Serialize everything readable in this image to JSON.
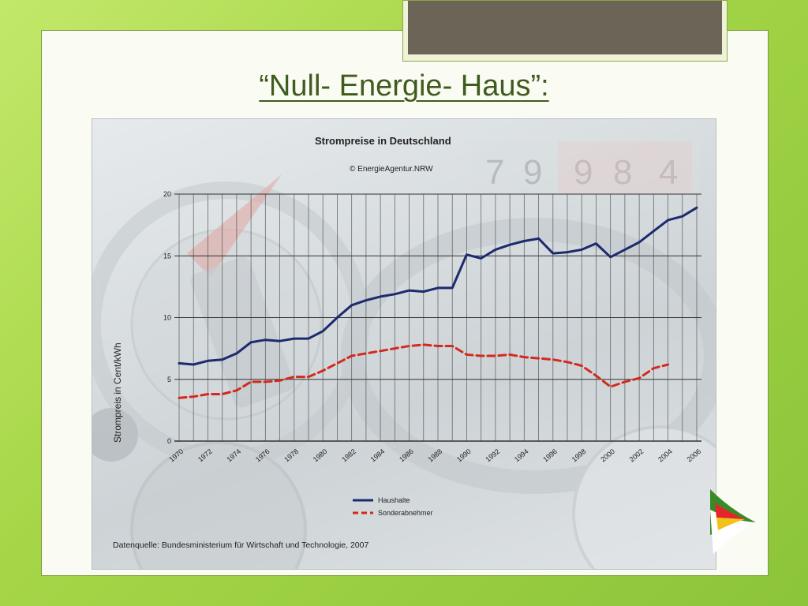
{
  "slide": {
    "title": "“Null- Energie- Haus”:"
  },
  "chart_data": {
    "type": "line",
    "title": "Strompreise in Deutschland",
    "copyright": "© EnergieAgentur.NRW",
    "ylabel": "Strompreis in Cent/kWh",
    "xlabel": "",
    "ylim": [
      0,
      20
    ],
    "xlim": [
      1970,
      2006
    ],
    "yticks": [
      0,
      5,
      10,
      15,
      20
    ],
    "xticks": [
      "1970",
      "1972",
      "1974",
      "1976",
      "1978",
      "1980",
      "1982",
      "1984",
      "1986",
      "1988",
      "1990",
      "1992",
      "1994",
      "1996",
      "1998",
      "2000",
      "2002",
      "2004",
      "2006"
    ],
    "grid": true,
    "legend_position": "bottom-right",
    "source": "Datenquelle: Bundesministerium für Wirtschaft und Technologie, 2007",
    "background_digits": [
      "7",
      "9",
      "9",
      "8",
      "4"
    ],
    "series": [
      {
        "name": "Haushalte",
        "color": "#1c2a6e",
        "style": "solid",
        "x": [
          1970,
          1971,
          1972,
          1973,
          1974,
          1975,
          1976,
          1977,
          1978,
          1979,
          1980,
          1981,
          1982,
          1983,
          1984,
          1985,
          1986,
          1987,
          1988,
          1989,
          1990,
          1991,
          1992,
          1993,
          1994,
          1995,
          1996,
          1997,
          1998,
          1999,
          2000,
          2001,
          2002,
          2003,
          2004,
          2005,
          2006
        ],
        "values": [
          6.3,
          6.2,
          6.5,
          6.6,
          7.1,
          8.0,
          8.2,
          8.1,
          8.3,
          8.3,
          8.9,
          10.0,
          11.0,
          11.4,
          11.7,
          11.9,
          12.2,
          12.1,
          12.4,
          12.4,
          15.1,
          14.8,
          15.5,
          15.9,
          16.2,
          16.4,
          15.2,
          15.3,
          15.5,
          16.0,
          14.9,
          15.5,
          16.1,
          17.0,
          17.9,
          18.2,
          18.9
        ]
      },
      {
        "name": "Sonderabnehmer",
        "color": "#d42a1e",
        "style": "dashed",
        "x": [
          1970,
          1971,
          1972,
          1973,
          1974,
          1975,
          1976,
          1977,
          1978,
          1979,
          1980,
          1981,
          1982,
          1983,
          1984,
          1985,
          1986,
          1987,
          1988,
          1989,
          1990,
          1991,
          1992,
          1993,
          1994,
          1995,
          1996,
          1997,
          1998,
          1999,
          2000,
          2001,
          2002,
          2003,
          2004
        ],
        "values": [
          3.5,
          3.6,
          3.8,
          3.8,
          4.1,
          4.8,
          4.8,
          4.9,
          5.2,
          5.2,
          5.7,
          6.3,
          6.9,
          7.1,
          7.3,
          7.5,
          7.7,
          7.8,
          7.7,
          7.7,
          7.0,
          6.9,
          6.9,
          7.0,
          6.8,
          6.7,
          6.6,
          6.4,
          6.1,
          5.3,
          4.4,
          4.8,
          5.1,
          5.9,
          6.2
        ]
      }
    ]
  }
}
